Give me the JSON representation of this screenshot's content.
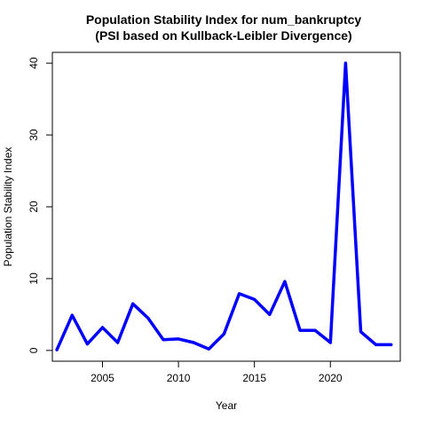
{
  "chart_data": {
    "type": "line",
    "title": "Population Stability Index for num_bankruptcy",
    "subtitle": "(PSI based on Kullback-Leibler Divergence)",
    "xlabel": "Year",
    "ylabel": "Population Stability Index",
    "x": [
      2002,
      2003,
      2004,
      2005,
      2006,
      2007,
      2008,
      2009,
      2010,
      2011,
      2012,
      2013,
      2014,
      2015,
      2016,
      2017,
      2018,
      2019,
      2020,
      2021,
      2022,
      2023,
      2024
    ],
    "series": [
      {
        "values": [
          0.1,
          4.9,
          0.9,
          3.2,
          1.1,
          6.5,
          4.5,
          1.5,
          1.6,
          1.1,
          0.2,
          2.3,
          7.9,
          7.1,
          5.0,
          9.6,
          2.8,
          2.8,
          1.1,
          40.0,
          2.6,
          0.8,
          0.8
        ],
        "color": "#0000ff"
      }
    ],
    "xlim": [
      2001.7,
      2024.6
    ],
    "ylim": [
      -1.5,
      41.5
    ],
    "xticks": [
      2005,
      2010,
      2015,
      2020
    ],
    "yticks": [
      0,
      10,
      20,
      30,
      40
    ],
    "grid": false,
    "legend": "none"
  }
}
